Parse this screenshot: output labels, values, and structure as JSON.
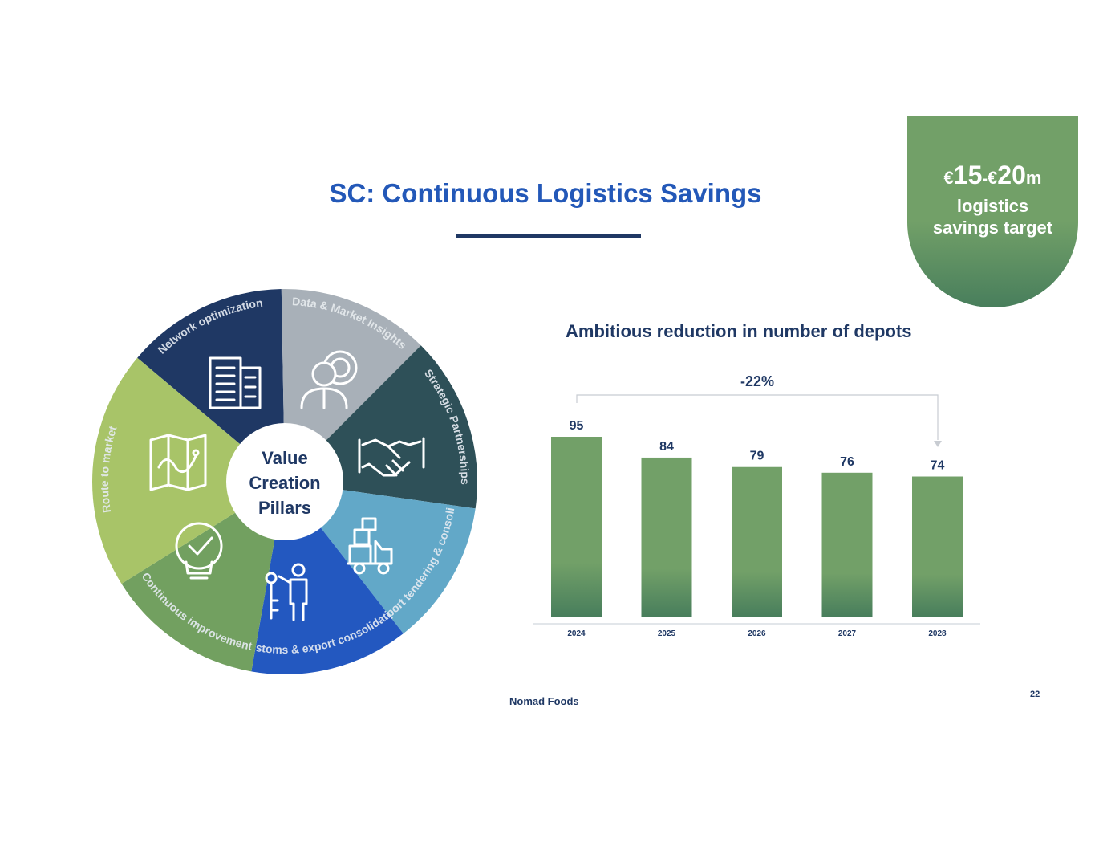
{
  "slide": {
    "title": "SC: Continuous Logistics Savings",
    "page_number": "22",
    "logo_text": "Nomad Foods"
  },
  "badge": {
    "currency_1": "€",
    "amount_1": "15",
    "dash": "-",
    "currency_2": "€",
    "amount_2": "20",
    "unit": "m",
    "line_1": "logistics",
    "line_2": "savings target",
    "color": "#72a068"
  },
  "wheel": {
    "center_lines": [
      "Value",
      "Creation",
      "Pillars"
    ],
    "segments": [
      {
        "label": "Network optimization",
        "icon": "building-icon",
        "color": "#1f3864"
      },
      {
        "label": "Data & Market Insights",
        "icon": "person-gear-icon",
        "color": "#a8b0b8"
      },
      {
        "label": "Strategic Partnerships",
        "icon": "handshake-icon",
        "color": "#2e5058"
      },
      {
        "label": "Transport tendering & consolidation",
        "icon": "delivery-truck-icon",
        "color": "#62a8c8"
      },
      {
        "label": "Customs & export consolidation",
        "icon": "key-person-icon",
        "color": "#2358c0"
      },
      {
        "label": "Continuous improvement",
        "icon": "lightbulb-check-icon",
        "color": "#72a060"
      },
      {
        "label": "Route to market",
        "icon": "map-icon",
        "color": "#a8c468"
      }
    ]
  },
  "chart_title": "Ambitious reduction in number of depots",
  "chart_data": {
    "type": "bar",
    "categories": [
      "2024",
      "2025",
      "2026",
      "2027",
      "2028"
    ],
    "values": [
      95,
      84,
      79,
      76,
      74
    ],
    "data_labels": [
      "95",
      "84",
      "79",
      "76",
      "74"
    ],
    "annotation": "-22%",
    "bar_color": "#72a068",
    "ylim": [
      0,
      95
    ]
  }
}
